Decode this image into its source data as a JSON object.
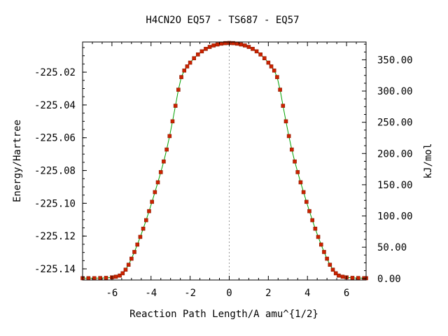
{
  "chart_data": {
    "type": "line",
    "title": "H4CN2O   EQ57 - TS687 - EQ57",
    "xlabel": "Reaction Path Length/A amu^{1/2}",
    "ylabel": "Energy/Hartree",
    "y2label": "kJ/mol",
    "xlim": [
      -7.5,
      7.0
    ],
    "ylim": [
      -225.1468,
      -225.0016
    ],
    "y2lim": [
      -2.5,
      378.5
    ],
    "grid": false,
    "xticks": [
      -6,
      -4,
      -2,
      0,
      2,
      4,
      6
    ],
    "yticks": [
      -225.14,
      -225.12,
      -225.1,
      -225.08,
      -225.06,
      -225.04,
      -225.02
    ],
    "yticklabels": [
      "-225.14",
      "-225.12",
      "-225.10",
      "-225.08",
      "-225.06",
      "-225.04",
      "-225.02"
    ],
    "y2ticks": [
      0,
      50,
      100,
      150,
      200,
      250,
      300,
      350
    ],
    "y2ticklabels": [
      "0.00",
      "50.00",
      "100.00",
      "150.00",
      "200.00",
      "250.00",
      "300.00",
      "350.00"
    ],
    "ts_x": 0,
    "colors": {
      "line": "#00a000",
      "points": "#cc2200",
      "points_edge": "#8b1a00",
      "ts_line": "#999999"
    },
    "series": [
      {
        "x": [
          -7.5,
          -7.2,
          -6.9,
          -6.6,
          -6.3,
          -6.0,
          -5.8,
          -5.6,
          -5.45,
          -5.3,
          -5.15,
          -5.0,
          -4.85,
          -4.7,
          -4.55,
          -4.4,
          -4.25,
          -4.1,
          -3.95,
          -3.8,
          -3.65,
          -3.5,
          -3.35,
          -3.2,
          -3.05,
          -2.9,
          -2.75,
          -2.6,
          -2.45,
          -2.3,
          -2.15,
          -2.0,
          -1.8,
          -1.6,
          -1.4,
          -1.2,
          -1.0,
          -0.8,
          -0.6,
          -0.4,
          -0.2,
          0.0,
          0.2,
          0.4,
          0.6,
          0.8,
          1.0,
          1.2,
          1.4,
          1.6,
          1.8,
          2.0,
          2.15,
          2.3,
          2.45,
          2.6,
          2.75,
          2.9,
          3.05,
          3.2,
          3.35,
          3.5,
          3.65,
          3.8,
          3.95,
          4.1,
          4.25,
          4.4,
          4.55,
          4.7,
          4.85,
          5.0,
          5.15,
          5.3,
          5.45,
          5.6,
          5.8,
          6.0,
          6.3,
          6.6,
          6.9,
          7.0
        ],
        "y": [
          -225.1457,
          -225.1457,
          -225.1457,
          -225.1456,
          -225.1455,
          -225.1452,
          -225.1448,
          -225.1441,
          -225.1427,
          -225.1405,
          -225.1375,
          -225.1338,
          -225.1297,
          -225.1252,
          -225.1205,
          -225.1155,
          -225.1103,
          -225.1048,
          -225.0991,
          -225.0932,
          -225.0872,
          -225.081,
          -225.0745,
          -225.0672,
          -225.059,
          -225.05,
          -225.0405,
          -225.0307,
          -225.023,
          -225.019,
          -225.0165,
          -225.0142,
          -225.0115,
          -225.0092,
          -225.0073,
          -225.0058,
          -225.0046,
          -225.0037,
          -225.0031,
          -225.0026,
          -225.0023,
          -225.0022,
          -225.0023,
          -225.0026,
          -225.0031,
          -225.0037,
          -225.0046,
          -225.0058,
          -225.0073,
          -225.0092,
          -225.0115,
          -225.0142,
          -225.0165,
          -225.019,
          -225.023,
          -225.0307,
          -225.0405,
          -225.05,
          -225.059,
          -225.0672,
          -225.0745,
          -225.081,
          -225.0872,
          -225.0932,
          -225.0991,
          -225.1048,
          -225.1103,
          -225.1155,
          -225.1205,
          -225.1252,
          -225.1297,
          -225.1338,
          -225.1375,
          -225.1405,
          -225.1427,
          -225.1441,
          -225.1448,
          -225.1452,
          -225.1455,
          -225.1456,
          -225.1457,
          -225.1457
        ]
      }
    ]
  }
}
